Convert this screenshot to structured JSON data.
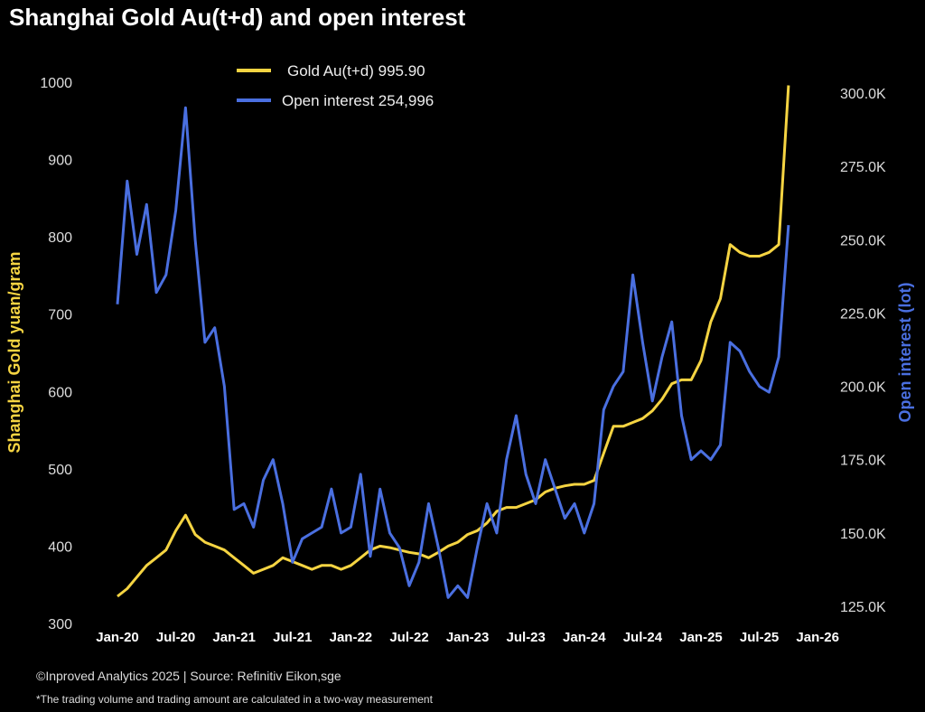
{
  "chart_data": {
    "type": "line",
    "title": "Shanghai Gold Au(t+d) and open interest",
    "x_ticks": [
      "Jan-20",
      "Jul-20",
      "Jan-21",
      "Jul-21",
      "Jan-22",
      "Jul-22",
      "Jan-23",
      "Jul-23",
      "Jan-24",
      "Jul-24",
      "Jan-25",
      "Jul-25",
      "Jan-26"
    ],
    "x_start": "2020-01",
    "x_step": "monthly",
    "left_axis": {
      "label": "Shanghai Gold yuan/gram",
      "range": [
        300,
        1000
      ],
      "ticks": [
        "300",
        "400",
        "500",
        "600",
        "700",
        "800",
        "900",
        "1000"
      ],
      "color": "#f5d442"
    },
    "right_axis": {
      "label": "Open interest (lot)",
      "range": [
        125,
        300
      ],
      "unit": "K lots",
      "ticks": [
        "125.0K",
        "150.0K",
        "175.0K",
        "200.0K",
        "225.0K",
        "250.0K",
        "275.0K",
        "300.0K"
      ],
      "color": "#4a6fe0"
    },
    "legend_position": "top-center",
    "series": [
      {
        "name": "Gold Au(t+d) 995.90",
        "axis": "left",
        "color": "#f5d442",
        "values": [
          335,
          345,
          360,
          375,
          385,
          395,
          420,
          440,
          415,
          405,
          400,
          395,
          385,
          375,
          365,
          370,
          375,
          385,
          380,
          375,
          370,
          375,
          375,
          370,
          375,
          385,
          395,
          400,
          398,
          395,
          392,
          390,
          385,
          392,
          400,
          405,
          415,
          420,
          430,
          445,
          450,
          450,
          455,
          460,
          470,
          475,
          478,
          480,
          480,
          485,
          520,
          555,
          555,
          560,
          565,
          575,
          590,
          610,
          615,
          615,
          640,
          690,
          720,
          790,
          780,
          775,
          775,
          780,
          790,
          995.9
        ]
      },
      {
        "name": "Open interest 254,996",
        "axis": "right",
        "color": "#4a6fe0",
        "values": [
          228,
          270,
          245,
          262,
          232,
          238,
          260,
          295,
          250,
          215,
          220,
          200,
          158,
          160,
          152,
          168,
          175,
          160,
          140,
          148,
          150,
          152,
          165,
          150,
          152,
          170,
          142,
          165,
          150,
          145,
          132,
          140,
          160,
          145,
          128,
          132,
          128,
          145,
          160,
          150,
          175,
          190,
          170,
          160,
          175,
          165,
          155,
          160,
          150,
          160,
          192,
          200,
          205,
          238,
          215,
          195,
          210,
          222,
          190,
          175,
          178,
          175,
          180,
          215,
          212,
          205,
          200,
          198,
          210,
          255
        ]
      }
    ]
  },
  "footer": {
    "credit": "©Inproved Analytics 2025 | Source: Refinitiv Eikon,sge",
    "note": "*The trading volume and trading amount are calculated in a two-way measurement"
  }
}
